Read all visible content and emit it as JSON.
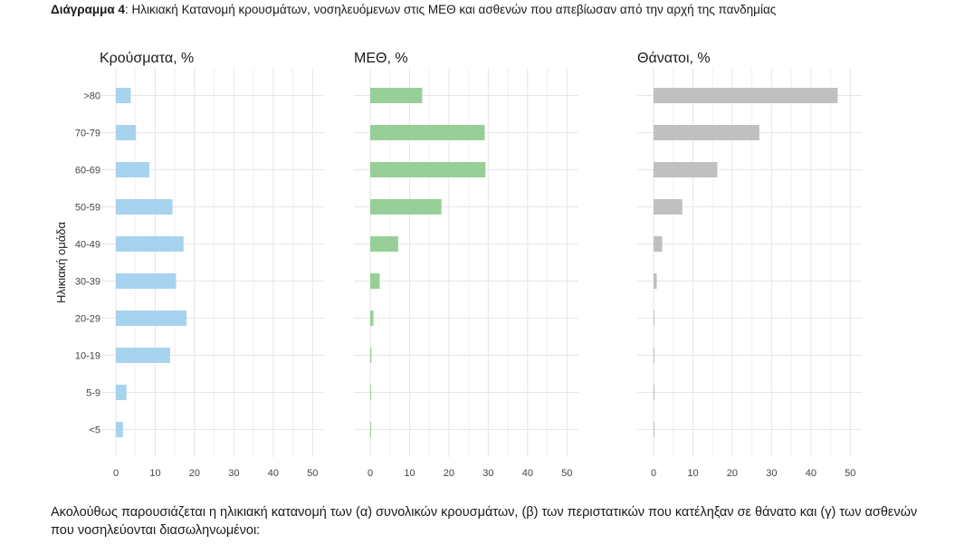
{
  "caption": {
    "label": "Διάγραμμα 4",
    "text": ": Ηλικιακή Κατανομή κρουσμάτων, νοσηλευόμενων στις ΜΕΘ και ασθενών που απεβίωσαν από την αρχή της πανδημίας"
  },
  "chart_data": {
    "type": "bar",
    "orientation": "horizontal",
    "ylabel": "Ηλικιακή ομάδα",
    "categories": [
      "<5",
      "5-9",
      "10-19",
      "20-29",
      "30-39",
      "40-49",
      "50-59",
      "60-69",
      "70-79",
      ">80"
    ],
    "xlim": [
      0,
      52
    ],
    "xticks": [
      0,
      10,
      20,
      30,
      40,
      50
    ],
    "grid": true,
    "panels": [
      {
        "title": "Κρούσματα, %",
        "color": "#a8d3ee",
        "values": [
          1.8,
          2.7,
          13.8,
          18.0,
          15.3,
          17.2,
          14.4,
          8.5,
          5.1,
          3.8
        ]
      },
      {
        "title": "ΜΕΘ, %",
        "color": "#98cf98",
        "values": [
          0.1,
          0.2,
          0.3,
          0.8,
          2.4,
          7.1,
          18.1,
          29.3,
          29.1,
          13.2
        ]
      },
      {
        "title": "Θάνατοι, %",
        "color": "#c0c0c0",
        "values": [
          0.05,
          0.05,
          0.1,
          0.2,
          0.8,
          2.2,
          7.3,
          16.2,
          26.9,
          46.8
        ]
      }
    ]
  },
  "paragraph": "Ακολούθως παρουσιάζεται η ηλικιακή κατανομή των (α) συνολικών κρουσμάτων, (β) των περιστατικών που κατέληξαν σε θάνατο και (γ) των ασθενών που νοσηλεύονται διασωληνωμένοι:"
}
